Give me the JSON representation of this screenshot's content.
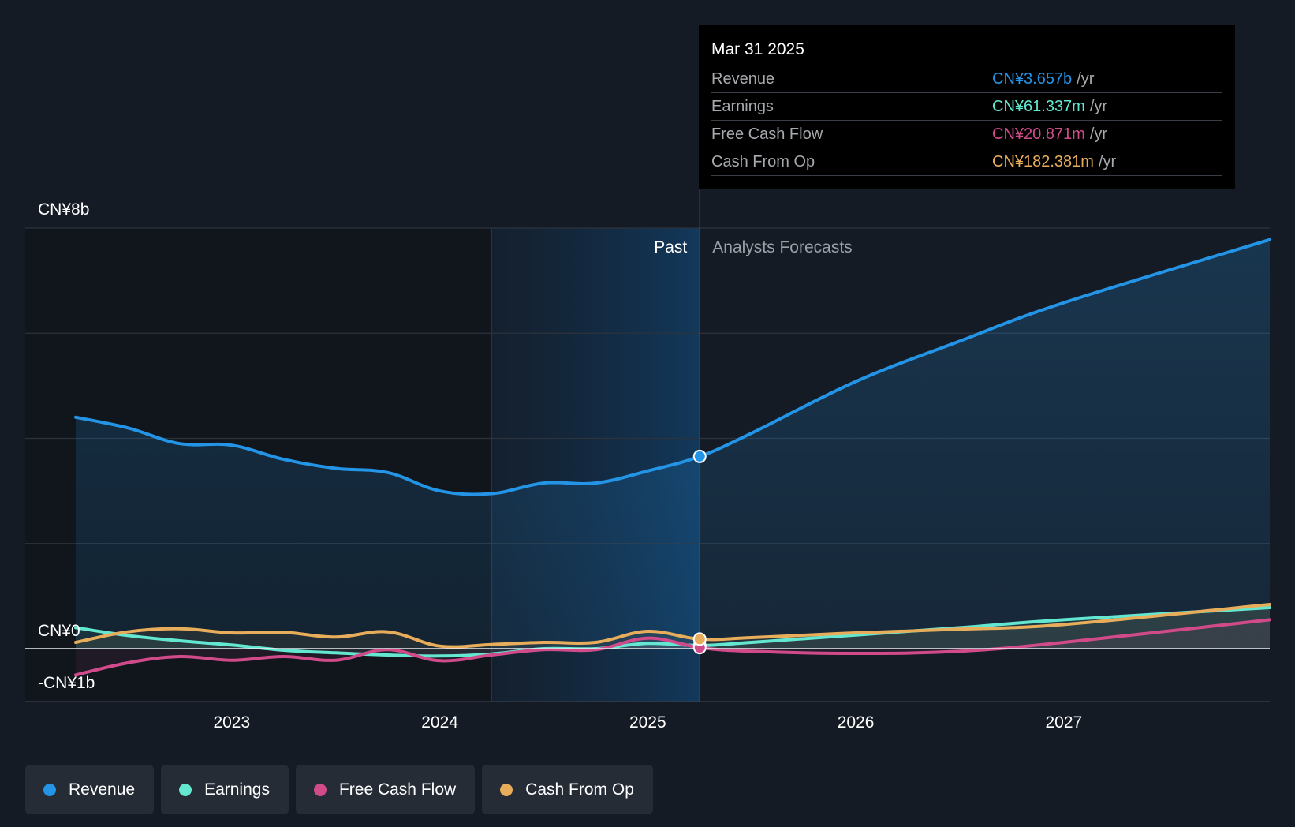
{
  "chart_data": {
    "type": "line",
    "y_unit": "CN¥ billions",
    "ylim": [
      -1,
      8
    ],
    "y_tick_labels": [
      {
        "value": 8,
        "label": "CN¥8b"
      },
      {
        "value": 0,
        "label": "CN¥0"
      },
      {
        "value": -1,
        "label": "-CN¥1b"
      }
    ],
    "x_tick_labels": [
      {
        "year": 2023,
        "label": "2023"
      },
      {
        "year": 2024,
        "label": "2024"
      },
      {
        "year": 2025,
        "label": "2025"
      },
      {
        "year": 2026,
        "label": "2026"
      },
      {
        "year": 2027,
        "label": "2027"
      }
    ],
    "xlim": [
      2022.0,
      2027.99
    ],
    "past_label": "Past",
    "forecast_label": "Analysts Forecasts",
    "past_region_start": 2024.25,
    "current_date": 2025.25,
    "series": [
      {
        "key": "revenue",
        "name": "Revenue",
        "color": "#2394e6",
        "filled": true,
        "points": [
          [
            2022.25,
            4.4
          ],
          [
            2022.5,
            4.2
          ],
          [
            2022.75,
            3.9
          ],
          [
            2023.0,
            3.87
          ],
          [
            2023.25,
            3.6
          ],
          [
            2023.5,
            3.43
          ],
          [
            2023.75,
            3.35
          ],
          [
            2024.0,
            3.0
          ],
          [
            2024.25,
            2.95
          ],
          [
            2024.5,
            3.15
          ],
          [
            2024.75,
            3.15
          ],
          [
            2025.0,
            3.38
          ],
          [
            2025.25,
            3.657
          ],
          [
            2025.5,
            4.1
          ],
          [
            2026.0,
            5.08
          ],
          [
            2026.5,
            5.85
          ],
          [
            2027.0,
            6.58
          ],
          [
            2027.99,
            7.78
          ]
        ]
      },
      {
        "key": "earnings",
        "name": "Earnings",
        "color": "#64e7d1",
        "filled": false,
        "points": [
          [
            2022.25,
            0.4
          ],
          [
            2022.5,
            0.25
          ],
          [
            2022.75,
            0.15
          ],
          [
            2023.0,
            0.07
          ],
          [
            2023.25,
            -0.03
          ],
          [
            2023.5,
            -0.08
          ],
          [
            2023.75,
            -0.12
          ],
          [
            2024.0,
            -0.14
          ],
          [
            2024.25,
            -0.1
          ],
          [
            2024.5,
            0.0
          ],
          [
            2024.75,
            0.0
          ],
          [
            2025.0,
            0.1
          ],
          [
            2025.25,
            0.061
          ],
          [
            2025.5,
            0.12
          ],
          [
            2026.0,
            0.26
          ],
          [
            2026.5,
            0.4
          ],
          [
            2027.0,
            0.55
          ],
          [
            2027.99,
            0.78
          ]
        ]
      },
      {
        "key": "fcf",
        "name": "Free Cash Flow",
        "color": "#d14b8b",
        "filled": false,
        "points": [
          [
            2022.25,
            -0.5
          ],
          [
            2022.5,
            -0.27
          ],
          [
            2022.75,
            -0.15
          ],
          [
            2023.0,
            -0.22
          ],
          [
            2023.25,
            -0.15
          ],
          [
            2023.5,
            -0.22
          ],
          [
            2023.75,
            -0.02
          ],
          [
            2024.0,
            -0.23
          ],
          [
            2024.25,
            -0.12
          ],
          [
            2024.5,
            -0.02
          ],
          [
            2024.75,
            -0.02
          ],
          [
            2025.0,
            0.2
          ],
          [
            2025.25,
            0.021
          ],
          [
            2025.5,
            -0.05
          ],
          [
            2026.0,
            -0.09
          ],
          [
            2026.5,
            -0.05
          ],
          [
            2027.0,
            0.12
          ],
          [
            2027.99,
            0.55
          ]
        ]
      },
      {
        "key": "cfo",
        "name": "Cash From Op",
        "color": "#e8ad5b",
        "filled": false,
        "points": [
          [
            2022.25,
            0.12
          ],
          [
            2022.5,
            0.32
          ],
          [
            2022.75,
            0.38
          ],
          [
            2023.0,
            0.3
          ],
          [
            2023.25,
            0.31
          ],
          [
            2023.5,
            0.22
          ],
          [
            2023.75,
            0.32
          ],
          [
            2024.0,
            0.05
          ],
          [
            2024.25,
            0.08
          ],
          [
            2024.5,
            0.12
          ],
          [
            2024.75,
            0.12
          ],
          [
            2025.0,
            0.33
          ],
          [
            2025.25,
            0.182
          ],
          [
            2025.5,
            0.21
          ],
          [
            2026.0,
            0.3
          ],
          [
            2026.5,
            0.37
          ],
          [
            2027.0,
            0.46
          ],
          [
            2027.99,
            0.84
          ]
        ]
      }
    ]
  },
  "tooltip": {
    "date": "Mar 31 2025",
    "rows": [
      {
        "name": "Revenue",
        "value": "CN¥3.657b",
        "unit": "/yr",
        "color": "#2394e6"
      },
      {
        "name": "Earnings",
        "value": "CN¥61.337m",
        "unit": "/yr",
        "color": "#64e7d1"
      },
      {
        "name": "Free Cash Flow",
        "value": "CN¥20.871m",
        "unit": "/yr",
        "color": "#d14b8b"
      },
      {
        "name": "Cash From Op",
        "value": "CN¥182.381m",
        "unit": "/yr",
        "color": "#e8ad5b"
      }
    ]
  },
  "legend": [
    {
      "label": "Revenue",
      "color": "#2394e6"
    },
    {
      "label": "Earnings",
      "color": "#64e7d1"
    },
    {
      "label": "Free Cash Flow",
      "color": "#d14b8b"
    },
    {
      "label": "Cash From Op",
      "color": "#e8ad5b"
    }
  ]
}
